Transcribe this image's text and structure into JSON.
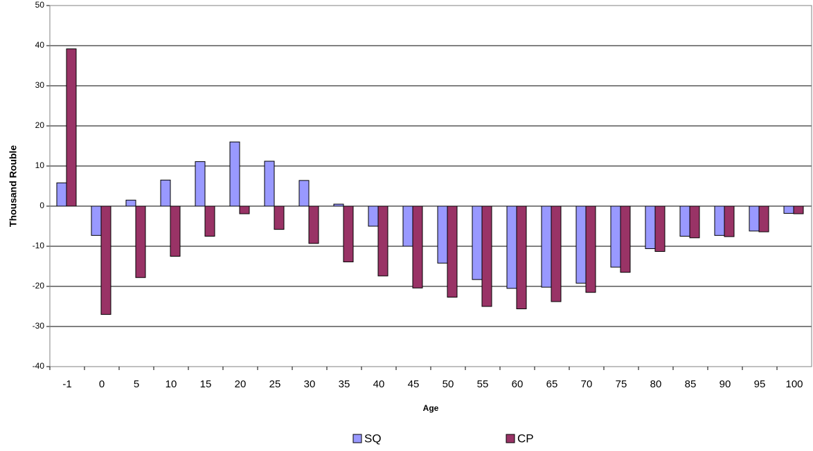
{
  "chart_data": {
    "type": "bar",
    "x_label": "Age",
    "y_label": "Thousand Rouble",
    "categories": [
      "-1",
      "0",
      "5",
      "10",
      "15",
      "20",
      "25",
      "30",
      "35",
      "40",
      "45",
      "50",
      "55",
      "60",
      "65",
      "70",
      "75",
      "80",
      "85",
      "90",
      "95",
      "100"
    ],
    "series": [
      {
        "name": "SQ",
        "color": "#9999ff",
        "values": [
          5.8,
          -7.3,
          1.5,
          6.5,
          11.1,
          16,
          11.2,
          6.4,
          0.5,
          -5,
          -10,
          -14.2,
          -18.3,
          -20.5,
          -20.2,
          -19.2,
          -15.2,
          -10.6,
          -7.5,
          -7.3,
          -6.2,
          -1.8
        ]
      },
      {
        "name": "CP",
        "color": "#993366",
        "values": [
          39.2,
          -27,
          -17.8,
          -12.5,
          -7.5,
          -1.9,
          -5.8,
          -9.3,
          -13.9,
          -17.4,
          -20.4,
          -22.7,
          -25,
          -25.6,
          -23.8,
          -21.5,
          -16.5,
          -11.3,
          -7.9,
          -7.6,
          -6.4,
          -1.9
        ]
      }
    ],
    "ylim": [
      -40,
      50
    ],
    "yticks": [
      -40,
      -30,
      -20,
      -10,
      0,
      10,
      20,
      30,
      40,
      50
    ],
    "grid": true
  }
}
